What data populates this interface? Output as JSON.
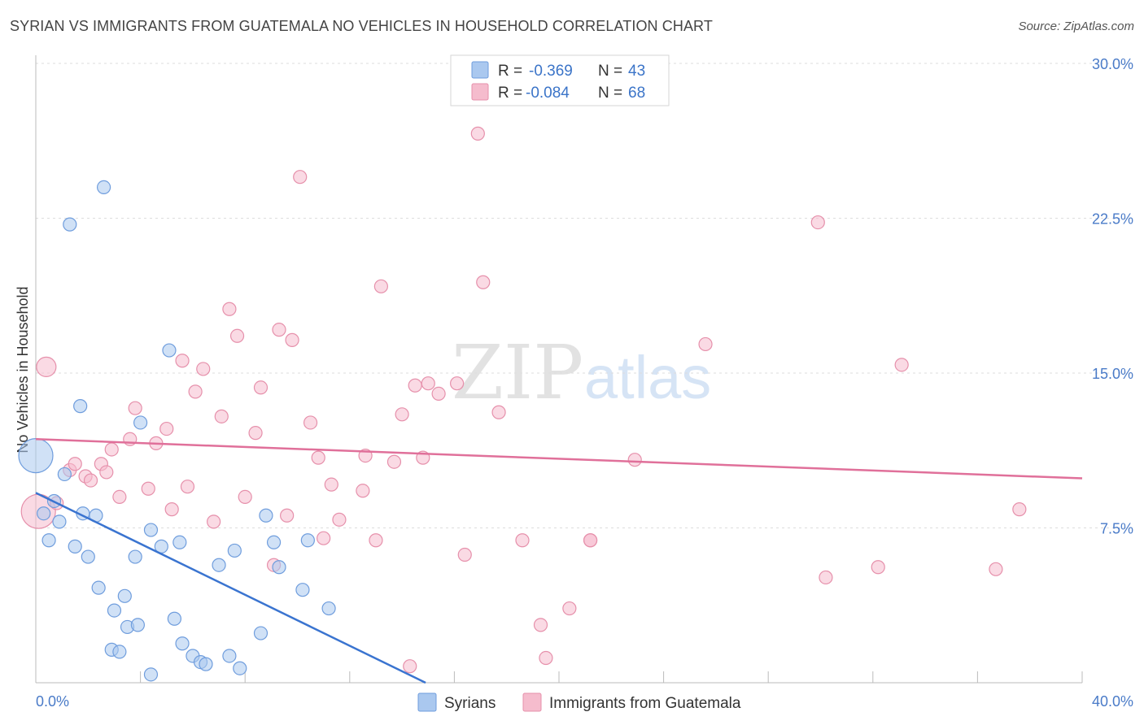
{
  "title": "SYRIAN VS IMMIGRANTS FROM GUATEMALA NO VEHICLES IN HOUSEHOLD CORRELATION CHART",
  "source": "Source: ZipAtlas.com",
  "watermark": {
    "zip": "ZIP",
    "atlas": "atlas"
  },
  "colors": {
    "blue_fill": "#aac8ef",
    "blue_stroke": "#6f9ddd",
    "blue_line": "#3a74d0",
    "pink_fill": "#f5bccd",
    "pink_stroke": "#e690ab",
    "pink_line": "#e0709a"
  },
  "legend": {
    "rows": [
      {
        "r_label": "R =",
        "r_value": "-0.369",
        "n_label": "N =",
        "n_value": "43"
      },
      {
        "r_label": "R =",
        "r_value": "-0.084",
        "n_label": "N =",
        "n_value": "68"
      }
    ]
  },
  "chart_data": {
    "type": "scatter",
    "title": "SYRIAN VS IMMIGRANTS FROM GUATEMALA NO VEHICLES IN HOUSEHOLD CORRELATION CHART",
    "xlabel": "",
    "ylabel": "No Vehicles in Household",
    "xlim": [
      0,
      40
    ],
    "ylim": [
      0,
      30
    ],
    "x_tick_labels": [
      "0.0%",
      "40.0%"
    ],
    "y_ticks": [
      7.5,
      15.0,
      22.5,
      30.0
    ],
    "y_tick_labels": [
      "7.5%",
      "15.0%",
      "22.5%",
      "30.0%"
    ],
    "grid": true,
    "legend_position": "top-center",
    "series": [
      {
        "name": "Syrians",
        "color": "blue",
        "trend": {
          "x": [
            0,
            14.9
          ],
          "y": [
            9.2,
            0.0
          ]
        },
        "points": [
          {
            "x": 0.0,
            "y": 11.0,
            "big": true
          },
          {
            "x": 0.3,
            "y": 8.2
          },
          {
            "x": 0.5,
            "y": 6.9
          },
          {
            "x": 0.7,
            "y": 8.8
          },
          {
            "x": 0.9,
            "y": 7.8
          },
          {
            "x": 1.1,
            "y": 10.1
          },
          {
            "x": 1.5,
            "y": 6.6
          },
          {
            "x": 1.7,
            "y": 13.4
          },
          {
            "x": 1.8,
            "y": 8.2
          },
          {
            "x": 2.0,
            "y": 6.1
          },
          {
            "x": 2.3,
            "y": 8.1
          },
          {
            "x": 2.4,
            "y": 4.6
          },
          {
            "x": 2.6,
            "y": 24.0
          },
          {
            "x": 2.9,
            "y": 1.6
          },
          {
            "x": 3.0,
            "y": 3.5
          },
          {
            "x": 3.2,
            "y": 1.5
          },
          {
            "x": 3.4,
            "y": 4.2
          },
          {
            "x": 3.5,
            "y": 2.7
          },
          {
            "x": 3.8,
            "y": 6.1
          },
          {
            "x": 3.9,
            "y": 2.8
          },
          {
            "x": 4.0,
            "y": 12.6
          },
          {
            "x": 4.4,
            "y": 0.4
          },
          {
            "x": 4.4,
            "y": 7.4
          },
          {
            "x": 4.8,
            "y": 6.6
          },
          {
            "x": 5.1,
            "y": 16.1
          },
          {
            "x": 5.3,
            "y": 3.1
          },
          {
            "x": 5.5,
            "y": 6.8
          },
          {
            "x": 5.6,
            "y": 1.9
          },
          {
            "x": 6.0,
            "y": 1.3
          },
          {
            "x": 6.3,
            "y": 1.0
          },
          {
            "x": 6.5,
            "y": 0.9
          },
          {
            "x": 7.0,
            "y": 5.7
          },
          {
            "x": 7.4,
            "y": 1.3
          },
          {
            "x": 7.6,
            "y": 6.4
          },
          {
            "x": 7.8,
            "y": 0.7
          },
          {
            "x": 8.6,
            "y": 2.4
          },
          {
            "x": 8.8,
            "y": 8.1
          },
          {
            "x": 9.1,
            "y": 6.8
          },
          {
            "x": 9.3,
            "y": 5.6
          },
          {
            "x": 10.2,
            "y": 4.5
          },
          {
            "x": 10.4,
            "y": 6.9
          },
          {
            "x": 11.2,
            "y": 3.6
          },
          {
            "x": 1.3,
            "y": 22.2
          }
        ]
      },
      {
        "name": "Immigrants from Guatemala",
        "color": "pink",
        "trend": {
          "x": [
            0,
            40
          ],
          "y": [
            11.8,
            9.9
          ]
        },
        "points": [
          {
            "x": 0.1,
            "y": 8.3,
            "big": true
          },
          {
            "x": 0.4,
            "y": 15.3,
            "mid": true
          },
          {
            "x": 0.8,
            "y": 8.7
          },
          {
            "x": 1.3,
            "y": 10.3
          },
          {
            "x": 1.5,
            "y": 10.6
          },
          {
            "x": 1.9,
            "y": 10.0
          },
          {
            "x": 2.1,
            "y": 9.8
          },
          {
            "x": 2.5,
            "y": 10.6
          },
          {
            "x": 2.7,
            "y": 10.2
          },
          {
            "x": 2.9,
            "y": 11.3
          },
          {
            "x": 3.2,
            "y": 9.0
          },
          {
            "x": 3.6,
            "y": 11.8
          },
          {
            "x": 3.8,
            "y": 13.3
          },
          {
            "x": 4.3,
            "y": 9.4
          },
          {
            "x": 4.6,
            "y": 11.6
          },
          {
            "x": 5.0,
            "y": 12.3
          },
          {
            "x": 5.2,
            "y": 8.4
          },
          {
            "x": 5.6,
            "y": 15.6
          },
          {
            "x": 5.8,
            "y": 9.5
          },
          {
            "x": 6.1,
            "y": 14.1
          },
          {
            "x": 6.4,
            "y": 15.2
          },
          {
            "x": 6.8,
            "y": 7.8
          },
          {
            "x": 7.1,
            "y": 12.9
          },
          {
            "x": 7.4,
            "y": 18.1
          },
          {
            "x": 7.7,
            "y": 16.8
          },
          {
            "x": 8.0,
            "y": 9.0
          },
          {
            "x": 8.4,
            "y": 12.1
          },
          {
            "x": 8.6,
            "y": 14.3
          },
          {
            "x": 9.1,
            "y": 5.7
          },
          {
            "x": 9.3,
            "y": 17.1
          },
          {
            "x": 9.6,
            "y": 8.1
          },
          {
            "x": 9.8,
            "y": 16.6
          },
          {
            "x": 10.1,
            "y": 24.5
          },
          {
            "x": 10.5,
            "y": 12.6
          },
          {
            "x": 10.8,
            "y": 10.9
          },
          {
            "x": 11.0,
            "y": 7.0
          },
          {
            "x": 11.3,
            "y": 9.6
          },
          {
            "x": 11.6,
            "y": 7.9
          },
          {
            "x": 12.5,
            "y": 9.3
          },
          {
            "x": 13.0,
            "y": 6.9
          },
          {
            "x": 13.2,
            "y": 19.2
          },
          {
            "x": 13.7,
            "y": 10.7
          },
          {
            "x": 14.0,
            "y": 13.0
          },
          {
            "x": 14.3,
            "y": 0.8
          },
          {
            "x": 14.5,
            "y": 14.4
          },
          {
            "x": 14.8,
            "y": 10.9
          },
          {
            "x": 15.0,
            "y": 14.5
          },
          {
            "x": 15.4,
            "y": 14.0
          },
          {
            "x": 16.1,
            "y": 14.5
          },
          {
            "x": 16.4,
            "y": 6.2
          },
          {
            "x": 16.9,
            "y": 26.6
          },
          {
            "x": 17.1,
            "y": 19.4
          },
          {
            "x": 17.7,
            "y": 13.1
          },
          {
            "x": 18.6,
            "y": 6.9
          },
          {
            "x": 19.3,
            "y": 2.8
          },
          {
            "x": 19.5,
            "y": 1.2
          },
          {
            "x": 20.4,
            "y": 3.6
          },
          {
            "x": 21.2,
            "y": 6.9
          },
          {
            "x": 21.2,
            "y": 6.9
          },
          {
            "x": 22.9,
            "y": 10.8
          },
          {
            "x": 25.6,
            "y": 16.4
          },
          {
            "x": 29.9,
            "y": 22.3
          },
          {
            "x": 30.2,
            "y": 5.1
          },
          {
            "x": 32.2,
            "y": 5.6
          },
          {
            "x": 33.1,
            "y": 15.4
          },
          {
            "x": 36.7,
            "y": 5.5
          },
          {
            "x": 37.6,
            "y": 8.4
          },
          {
            "x": 12.6,
            "y": 11.0
          }
        ]
      }
    ]
  }
}
